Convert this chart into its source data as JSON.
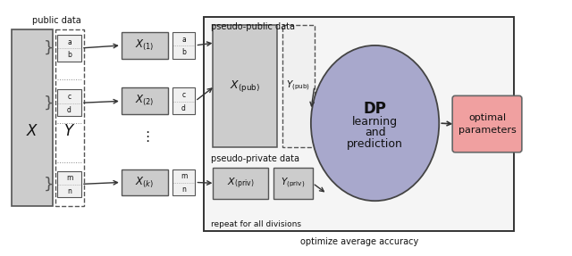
{
  "bg_color": "#ffffff",
  "fig_width": 6.4,
  "fig_height": 2.87,
  "dpi": 100,
  "gray_color": "#cccccc",
  "gray_edge": "#555555",
  "white_color": "#ffffff",
  "outer_color": "#eeeeee",
  "outer_edge": "#333333",
  "ellipse_color": "#a8a8cc",
  "ellipse_edge": "#444444",
  "pink_color": "#f0a0a0",
  "pink_edge": "#666666",
  "text_color": "#111111",
  "arrow_color": "#333333",
  "public_data_label": "public data",
  "pseudo_public_label": "pseudo-public data",
  "pseudo_private_label": "pseudo-private data",
  "repeat_label": "repeat for all divisions",
  "optimize_label": "optimize average accuracy",
  "dp_text": [
    "DP",
    "learning",
    "and",
    "prediction"
  ],
  "opt_text": [
    "optimal",
    "parameters"
  ]
}
